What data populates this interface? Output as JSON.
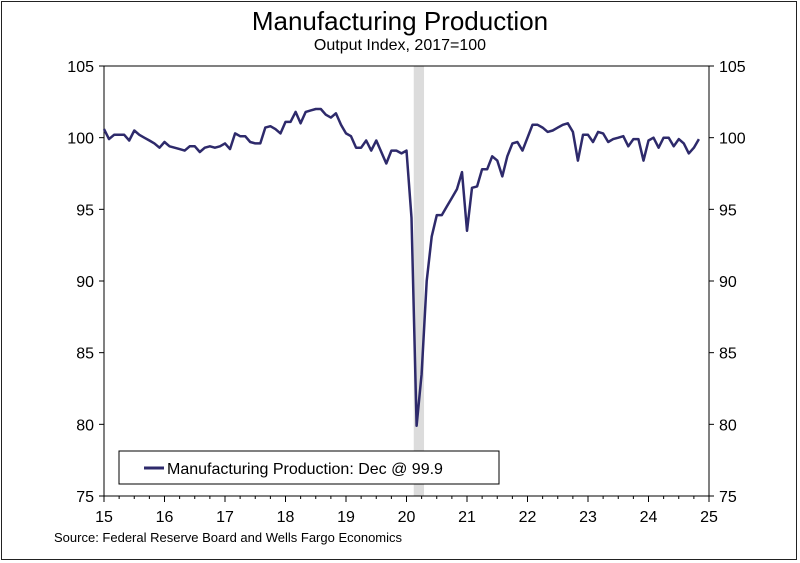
{
  "chart_data": {
    "type": "line",
    "title": "Manufacturing Production",
    "subtitle": "Output Index, 2017=100",
    "source": "Source: Federal Reserve Board and Wells Fargo Economics",
    "legend_label": "Manufacturing Production: Dec @ 99.9",
    "legend_position": "bottom-left",
    "y_ticks": [
      "105",
      "100",
      "95",
      "90",
      "85",
      "80",
      "75"
    ],
    "ylim": [
      75,
      105
    ],
    "x_ticks": [
      "15",
      "16",
      "17",
      "18",
      "19",
      "20",
      "21",
      "22",
      "23",
      "24",
      "25"
    ],
    "xlim": [
      2015,
      2025
    ],
    "recession_shading": {
      "start": 2020.12,
      "end": 2020.29
    },
    "colors": {
      "line": "#2e2a6b",
      "shade": "#dcdcdc",
      "axis": "#000000"
    },
    "series": [
      {
        "name": "Manufacturing Production",
        "start": 2015.0,
        "step_months": 1,
        "values": [
          100.6,
          99.9,
          100.2,
          100.2,
          100.2,
          99.8,
          100.5,
          100.2,
          100.0,
          99.8,
          99.6,
          99.3,
          99.7,
          99.4,
          99.3,
          99.2,
          99.1,
          99.4,
          99.4,
          99.0,
          99.3,
          99.4,
          99.3,
          99.4,
          99.6,
          99.2,
          100.3,
          100.1,
          100.1,
          99.7,
          99.6,
          99.6,
          100.7,
          100.8,
          100.6,
          100.3,
          101.1,
          101.1,
          101.8,
          101.0,
          101.8,
          101.9,
          102.0,
          102.0,
          101.6,
          101.4,
          101.7,
          100.9,
          100.3,
          100.1,
          99.3,
          99.3,
          99.8,
          99.1,
          99.8,
          99.0,
          98.2,
          99.1,
          99.1,
          98.9,
          99.1,
          94.4,
          79.9,
          83.5,
          90.0,
          93.1,
          94.6,
          94.6,
          95.2,
          95.8,
          96.4,
          97.6,
          93.5,
          96.5,
          96.6,
          97.8,
          97.8,
          98.7,
          98.4,
          97.3,
          98.7,
          99.6,
          99.7,
          99.1,
          100.0,
          100.9,
          100.9,
          100.7,
          100.4,
          100.5,
          100.7,
          100.9,
          101.0,
          100.4,
          98.4,
          100.2,
          100.2,
          99.7,
          100.4,
          100.3,
          99.7,
          99.9,
          100.0,
          100.1,
          99.4,
          99.9,
          99.9,
          98.4,
          99.8,
          100.0,
          99.3,
          100.0,
          100.0,
          99.4,
          99.9,
          99.6,
          98.9,
          99.3,
          99.9
        ]
      }
    ]
  }
}
